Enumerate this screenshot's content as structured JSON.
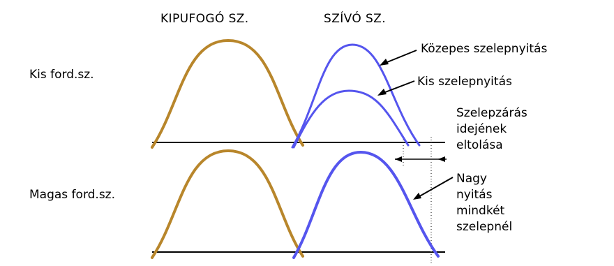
{
  "headers": {
    "exhaust": "KIPUFOGÓ SZ.",
    "intake": "SZÍVÓ SZ."
  },
  "rows": {
    "low_rpm": "Kis ford.sz.",
    "high_rpm": "Magas ford.sz."
  },
  "annotations": {
    "medium_opening": "Közepes szelepnyitás",
    "small_opening": "Kis szelepnyitás",
    "closing_shift_1": "Szelepzárás",
    "closing_shift_2": "idejének",
    "closing_shift_3": "eltolása",
    "large_opening_1": "Nagy",
    "large_opening_2": "nyitás",
    "large_opening_3": "mindkét",
    "large_opening_4": "szelepnél"
  },
  "colors": {
    "exhaust_curve": "#b8862b",
    "intake_curve": "#5555ee",
    "baseline": "#000000",
    "guide_line": "#555555"
  }
}
